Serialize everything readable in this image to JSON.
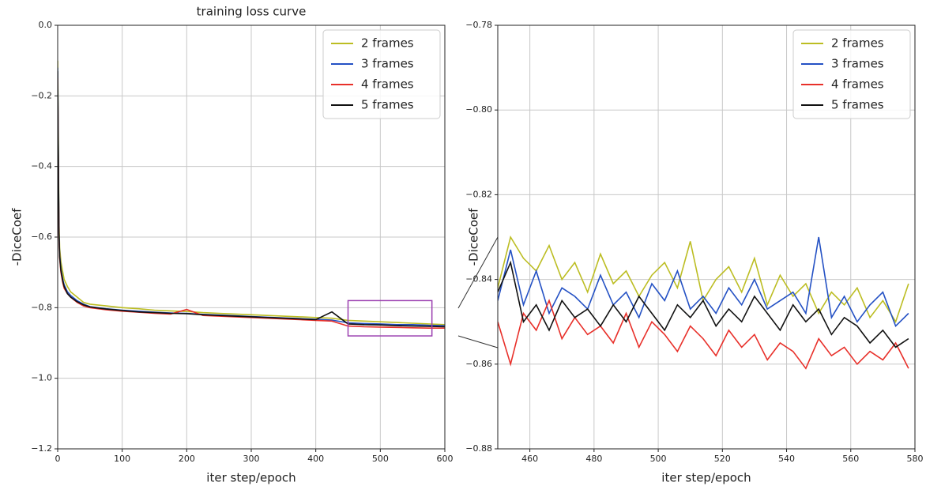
{
  "chart_data": [
    {
      "type": "line",
      "title": "training loss curve",
      "xlabel": "iter step/epoch",
      "ylabel": "-DiceCoef",
      "x": [
        0,
        1,
        2,
        3,
        5,
        8,
        10,
        15,
        20,
        30,
        40,
        50,
        75,
        100,
        125,
        150,
        175,
        200,
        225,
        250,
        275,
        300,
        325,
        350,
        375,
        400,
        425,
        450,
        475,
        500,
        525,
        550,
        575,
        600
      ],
      "series": [
        {
          "name": "2 frames",
          "color": "#bcbd22",
          "values": [
            -0.1,
            -0.32,
            -0.56,
            -0.63,
            -0.67,
            -0.7,
            -0.72,
            -0.74,
            -0.755,
            -0.77,
            -0.785,
            -0.79,
            -0.795,
            -0.8,
            -0.803,
            -0.807,
            -0.809,
            -0.811,
            -0.814,
            -0.816,
            -0.818,
            -0.82,
            -0.822,
            -0.824,
            -0.826,
            -0.828,
            -0.83,
            -0.836,
            -0.838,
            -0.84,
            -0.842,
            -0.844,
            -0.846,
            -0.848
          ]
        },
        {
          "name": "3 frames",
          "color": "#2451c4",
          "values": [
            -0.12,
            -0.35,
            -0.58,
            -0.65,
            -0.69,
            -0.72,
            -0.735,
            -0.755,
            -0.765,
            -0.78,
            -0.79,
            -0.797,
            -0.803,
            -0.807,
            -0.81,
            -0.813,
            -0.815,
            -0.816,
            -0.819,
            -0.821,
            -0.823,
            -0.825,
            -0.827,
            -0.829,
            -0.831,
            -0.833,
            -0.835,
            -0.843,
            -0.845,
            -0.846,
            -0.848,
            -0.848,
            -0.85,
            -0.851
          ]
        },
        {
          "name": "4 frames",
          "color": "#e8302a",
          "values": [
            -0.15,
            -0.38,
            -0.6,
            -0.66,
            -0.7,
            -0.73,
            -0.745,
            -0.76,
            -0.77,
            -0.785,
            -0.795,
            -0.8,
            -0.806,
            -0.81,
            -0.813,
            -0.816,
            -0.818,
            -0.805,
            -0.822,
            -0.824,
            -0.826,
            -0.828,
            -0.83,
            -0.832,
            -0.834,
            -0.836,
            -0.838,
            -0.852,
            -0.854,
            -0.855,
            -0.856,
            -0.857,
            -0.858,
            -0.858
          ]
        },
        {
          "name": "5 frames",
          "color": "#111111",
          "values": [
            -0.13,
            -0.36,
            -0.59,
            -0.655,
            -0.695,
            -0.725,
            -0.74,
            -0.76,
            -0.77,
            -0.783,
            -0.792,
            -0.798,
            -0.804,
            -0.808,
            -0.812,
            -0.814,
            -0.816,
            -0.817,
            -0.82,
            -0.822,
            -0.824,
            -0.826,
            -0.828,
            -0.83,
            -0.832,
            -0.834,
            -0.812,
            -0.846,
            -0.848,
            -0.849,
            -0.851,
            -0.852,
            -0.853,
            -0.854
          ]
        }
      ],
      "xlim": [
        0,
        600
      ],
      "xticks": [
        0,
        100,
        200,
        300,
        400,
        500,
        600
      ],
      "ylim": [
        -1.2,
        0
      ],
      "yticks": [
        {
          "value": 0,
          "label": "0.0"
        },
        {
          "value": -0.2,
          "label": "−0.2"
        },
        {
          "value": -0.4,
          "label": "−0.4"
        },
        {
          "value": -0.6,
          "label": "−0.6"
        },
        {
          "value": -0.8,
          "label": "−0.8"
        },
        {
          "value": -1.0,
          "label": "−1.0"
        },
        {
          "value": -1.2,
          "label": "−1.2"
        }
      ],
      "grid": true,
      "legend": "upper right"
    },
    {
      "type": "line",
      "xlabel": "iter step/epoch",
      "ylabel": "-DiceCoef",
      "x": [
        450,
        454,
        458,
        462,
        466,
        470,
        474,
        478,
        482,
        486,
        490,
        494,
        498,
        502,
        506,
        510,
        514,
        518,
        522,
        526,
        530,
        534,
        538,
        542,
        546,
        550,
        554,
        558,
        562,
        566,
        570,
        574,
        578
      ],
      "series": [
        {
          "name": "2 frames",
          "color": "#bcbd22",
          "values": [
            -0.842,
            -0.83,
            -0.835,
            -0.838,
            -0.832,
            -0.84,
            -0.836,
            -0.843,
            -0.834,
            -0.841,
            -0.838,
            -0.844,
            -0.839,
            -0.836,
            -0.842,
            -0.831,
            -0.845,
            -0.84,
            -0.837,
            -0.843,
            -0.835,
            -0.846,
            -0.839,
            -0.844,
            -0.841,
            -0.848,
            -0.843,
            -0.846,
            -0.842,
            -0.849,
            -0.845,
            -0.85,
            -0.841
          ]
        },
        {
          "name": "3 frames",
          "color": "#2451c4",
          "values": [
            -0.845,
            -0.833,
            -0.846,
            -0.838,
            -0.848,
            -0.842,
            -0.844,
            -0.847,
            -0.839,
            -0.846,
            -0.843,
            -0.849,
            -0.841,
            -0.845,
            -0.838,
            -0.847,
            -0.844,
            -0.848,
            -0.842,
            -0.846,
            -0.84,
            -0.847,
            -0.845,
            -0.843,
            -0.848,
            -0.83,
            -0.849,
            -0.844,
            -0.85,
            -0.846,
            -0.843,
            -0.851,
            -0.848
          ]
        },
        {
          "name": "4 frames",
          "color": "#e8302a",
          "values": [
            -0.85,
            -0.86,
            -0.848,
            -0.852,
            -0.845,
            -0.854,
            -0.849,
            -0.853,
            -0.851,
            -0.855,
            -0.848,
            -0.856,
            -0.85,
            -0.853,
            -0.857,
            -0.851,
            -0.854,
            -0.858,
            -0.852,
            -0.856,
            -0.853,
            -0.859,
            -0.855,
            -0.857,
            -0.861,
            -0.854,
            -0.858,
            -0.856,
            -0.86,
            -0.857,
            -0.859,
            -0.855,
            -0.861
          ]
        },
        {
          "name": "5 frames",
          "color": "#111111",
          "values": [
            -0.843,
            -0.836,
            -0.85,
            -0.846,
            -0.852,
            -0.845,
            -0.849,
            -0.847,
            -0.851,
            -0.846,
            -0.85,
            -0.844,
            -0.848,
            -0.852,
            -0.846,
            -0.849,
            -0.845,
            -0.851,
            -0.847,
            -0.85,
            -0.844,
            -0.848,
            -0.852,
            -0.846,
            -0.85,
            -0.847,
            -0.853,
            -0.849,
            -0.851,
            -0.855,
            -0.852,
            -0.856,
            -0.854
          ]
        }
      ],
      "xlim": [
        450,
        580
      ],
      "xticks": [
        460,
        480,
        500,
        520,
        540,
        560,
        580
      ],
      "ylim": [
        -0.88,
        -0.78
      ],
      "yticks": [
        {
          "value": -0.78,
          "label": "−0.78"
        },
        {
          "value": -0.8,
          "label": "−0.80"
        },
        {
          "value": -0.82,
          "label": "−0.82"
        },
        {
          "value": -0.84,
          "label": "−0.84"
        },
        {
          "value": -0.86,
          "label": "−0.86"
        },
        {
          "value": -0.88,
          "label": "−0.88"
        }
      ],
      "grid": true,
      "legend": "upper right"
    }
  ]
}
